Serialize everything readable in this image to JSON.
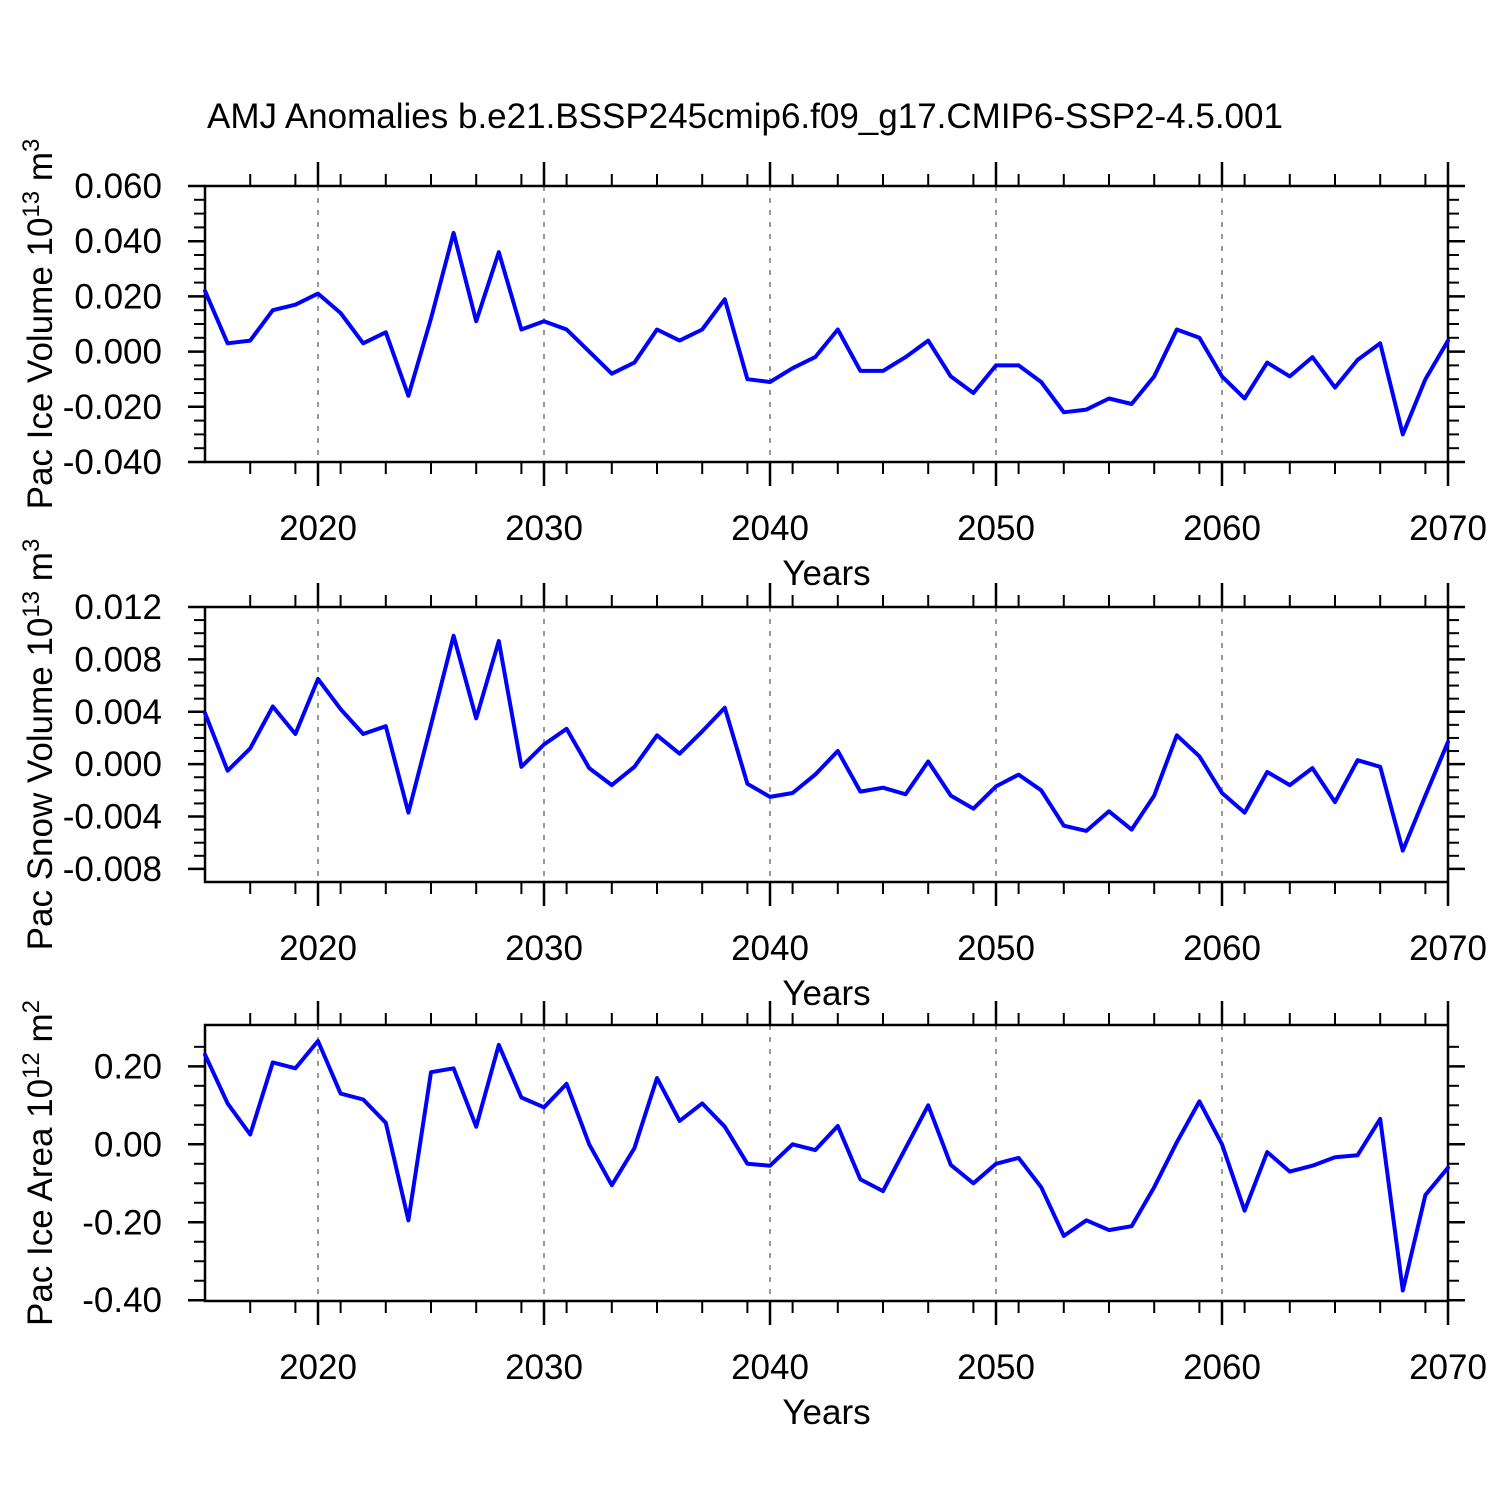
{
  "title": "AMJ Anomalies b.e21.BSSP245cmip6.f09_g17.CMIP6-SSP2-4.5.001",
  "colors": {
    "line": "#0000ff",
    "axis": "#000000",
    "grid": "#999999",
    "background": "#ffffff"
  },
  "x_axis": {
    "label": "Years",
    "start_year": 2015,
    "end_year": 2070,
    "major_tick_years": [
      2020,
      2030,
      2040,
      2050,
      2060,
      2070
    ],
    "major_tick_labels": [
      "2020",
      "2030",
      "2040",
      "2050",
      "2060",
      "2070"
    ],
    "minor_tick_step_years": 2,
    "gridline_years": [
      2020,
      2030,
      2040,
      2050,
      2060
    ]
  },
  "years": [
    2015,
    2016,
    2017,
    2018,
    2019,
    2020,
    2021,
    2022,
    2023,
    2024,
    2025,
    2026,
    2027,
    2028,
    2029,
    2030,
    2031,
    2032,
    2033,
    2034,
    2035,
    2036,
    2037,
    2038,
    2039,
    2040,
    2041,
    2042,
    2043,
    2044,
    2045,
    2046,
    2047,
    2048,
    2049,
    2050,
    2051,
    2052,
    2053,
    2054,
    2055,
    2056,
    2057,
    2058,
    2059,
    2060,
    2061,
    2062,
    2063,
    2064,
    2065,
    2066,
    2067,
    2068,
    2069,
    2070
  ],
  "chart_data": [
    {
      "type": "line",
      "title": "",
      "xlabel": "Years",
      "ylabel_text": "Pac Ice Volume 10^13 m^3",
      "ylabel_parts": [
        {
          "t": "Pac Ice Volume 10",
          "sup": false
        },
        {
          "t": "13",
          "sup": true
        },
        {
          "t": " m",
          "sup": false
        },
        {
          "t": "3",
          "sup": true
        }
      ],
      "ylim": [
        -0.04,
        0.06
      ],
      "ytick_values": [
        0.06,
        0.04,
        0.02,
        0.0,
        -0.02,
        -0.04
      ],
      "ytick_labels": [
        "0.060",
        "0.040",
        "0.020",
        "0.000",
        "-0.020",
        "-0.040"
      ],
      "minor_tick_step": 0.005,
      "grid": "vertical-dashed",
      "legend": "none",
      "values": [
        0.022,
        0.003,
        0.004,
        0.015,
        0.017,
        0.021,
        0.014,
        0.003,
        0.007,
        -0.016,
        0.012,
        0.043,
        0.011,
        0.036,
        0.008,
        0.011,
        0.008,
        0.0,
        -0.008,
        -0.004,
        0.008,
        0.004,
        0.008,
        0.019,
        -0.01,
        -0.011,
        -0.006,
        -0.002,
        0.008,
        -0.007,
        -0.007,
        -0.002,
        0.004,
        -0.009,
        -0.015,
        -0.005,
        -0.005,
        -0.011,
        -0.022,
        -0.021,
        -0.017,
        -0.019,
        -0.009,
        0.008,
        0.005,
        -0.009,
        -0.017,
        -0.004,
        -0.009,
        -0.002,
        -0.013,
        -0.003,
        0.003,
        -0.03,
        -0.01,
        0.004
      ]
    },
    {
      "type": "line",
      "title": "",
      "xlabel": "Years",
      "ylabel_text": "Pac Snow Volume 10^13 m^3",
      "ylabel_parts": [
        {
          "t": "Pac Snow Volume 10",
          "sup": false
        },
        {
          "t": "13",
          "sup": true
        },
        {
          "t": " m",
          "sup": false
        },
        {
          "t": "3",
          "sup": true
        }
      ],
      "ylim": [
        -0.009,
        0.012
      ],
      "ytick_values": [
        0.012,
        0.008,
        0.004,
        0.0,
        -0.004,
        -0.008
      ],
      "ytick_labels": [
        "0.012",
        "0.008",
        "0.004",
        "0.000",
        "-0.004",
        "-0.008"
      ],
      "minor_tick_step": 0.001,
      "grid": "vertical-dashed",
      "legend": "none",
      "values": [
        0.0039,
        -0.0005,
        0.0012,
        0.0044,
        0.0023,
        0.0065,
        0.0042,
        0.0023,
        0.0029,
        -0.0037,
        0.003,
        0.0098,
        0.0035,
        0.0094,
        -0.0002,
        0.0015,
        0.0027,
        -0.0003,
        -0.0016,
        -0.0002,
        0.0022,
        0.0008,
        0.0025,
        0.0043,
        -0.0015,
        -0.0025,
        -0.0022,
        -0.0008,
        0.001,
        -0.0021,
        -0.0018,
        -0.0023,
        0.0002,
        -0.0024,
        -0.0034,
        -0.0017,
        -0.0008,
        -0.002,
        -0.0047,
        -0.0051,
        -0.0036,
        -0.005,
        -0.0024,
        0.0022,
        0.0006,
        -0.0022,
        -0.0037,
        -0.0006,
        -0.0016,
        -0.0003,
        -0.0029,
        0.0003,
        -0.0002,
        -0.0066,
        -0.0024,
        0.0017
      ]
    },
    {
      "type": "line",
      "title": "",
      "xlabel": "Years",
      "ylabel_text": "Pac Ice Area 10^12 m^2",
      "ylabel_parts": [
        {
          "t": "Pac Ice Area 10",
          "sup": false
        },
        {
          "t": "12",
          "sup": true
        },
        {
          "t": " m",
          "sup": false
        },
        {
          "t": "2",
          "sup": true
        }
      ],
      "ylim": [
        -0.402,
        0.306
      ],
      "ytick_values": [
        0.2,
        0.0,
        -0.2,
        -0.4
      ],
      "ytick_labels": [
        "0.20",
        "0.00",
        "-0.20",
        "-0.40"
      ],
      "minor_tick_step": 0.05,
      "grid": "vertical-dashed",
      "legend": "none",
      "values": [
        0.23,
        0.105,
        0.025,
        0.21,
        0.195,
        0.265,
        0.13,
        0.115,
        0.055,
        -0.195,
        0.185,
        0.195,
        0.045,
        0.255,
        0.12,
        0.095,
        0.155,
        0.0,
        -0.105,
        -0.01,
        0.17,
        0.06,
        0.105,
        0.045,
        -0.05,
        -0.055,
        0.0,
        -0.015,
        0.047,
        -0.09,
        -0.12,
        -0.01,
        0.1,
        -0.053,
        -0.1,
        -0.05,
        -0.035,
        -0.11,
        -0.235,
        -0.195,
        -0.22,
        -0.21,
        -0.11,
        0.005,
        0.11,
        0.0,
        -0.17,
        -0.02,
        -0.07,
        -0.055,
        -0.033,
        -0.028,
        0.065,
        -0.375,
        -0.13,
        -0.06
      ]
    }
  ]
}
